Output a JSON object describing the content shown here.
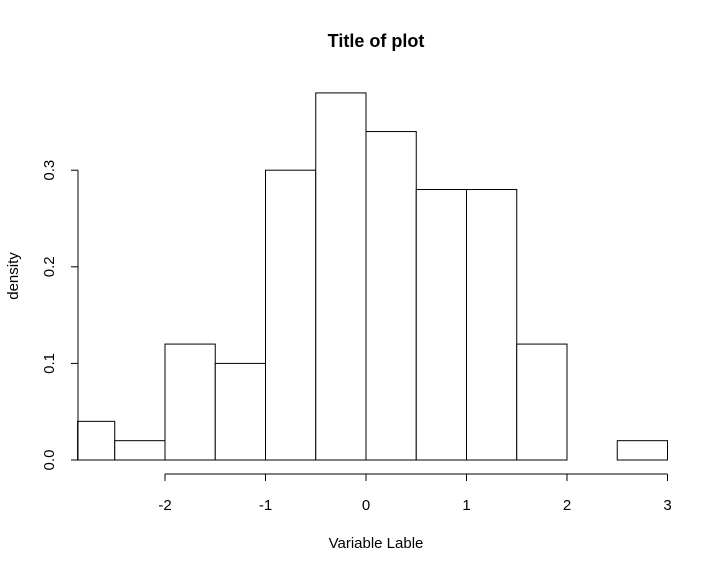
{
  "chart_data": {
    "type": "bar",
    "title": "Title of plot",
    "xlabel": "Variable Lable",
    "ylabel": "density",
    "bins": [
      {
        "start": -2.87,
        "end": -2.5,
        "value": 0.04
      },
      {
        "start": -2.5,
        "end": -2.0,
        "value": 0.02
      },
      {
        "start": -2.0,
        "end": -1.5,
        "value": 0.12
      },
      {
        "start": -1.5,
        "end": -1.0,
        "value": 0.1
      },
      {
        "start": -1.0,
        "end": -0.5,
        "value": 0.3
      },
      {
        "start": -0.5,
        "end": 0.0,
        "value": 0.38
      },
      {
        "start": 0.0,
        "end": 0.5,
        "value": 0.34
      },
      {
        "start": 0.5,
        "end": 1.0,
        "value": 0.28
      },
      {
        "start": 1.0,
        "end": 1.5,
        "value": 0.28
      },
      {
        "start": 1.5,
        "end": 2.0,
        "value": 0.12
      },
      {
        "start": 2.0,
        "end": 2.5,
        "value": 0.0
      },
      {
        "start": 2.5,
        "end": 3.0,
        "value": 0.02
      }
    ],
    "xticks": [
      -2,
      -1,
      0,
      1,
      2,
      3
    ],
    "xtick_labels": [
      "-2",
      "-1",
      "0",
      "1",
      "2",
      "3"
    ],
    "yticks": [
      0.0,
      0.1,
      0.2,
      0.3
    ],
    "ytick_labels": [
      "0.0",
      "0.1",
      "0.2",
      "0.3"
    ],
    "xlim": [
      -2.87,
      3.0
    ],
    "ylim": [
      0,
      0.38
    ],
    "grid": false,
    "legend": "none"
  }
}
